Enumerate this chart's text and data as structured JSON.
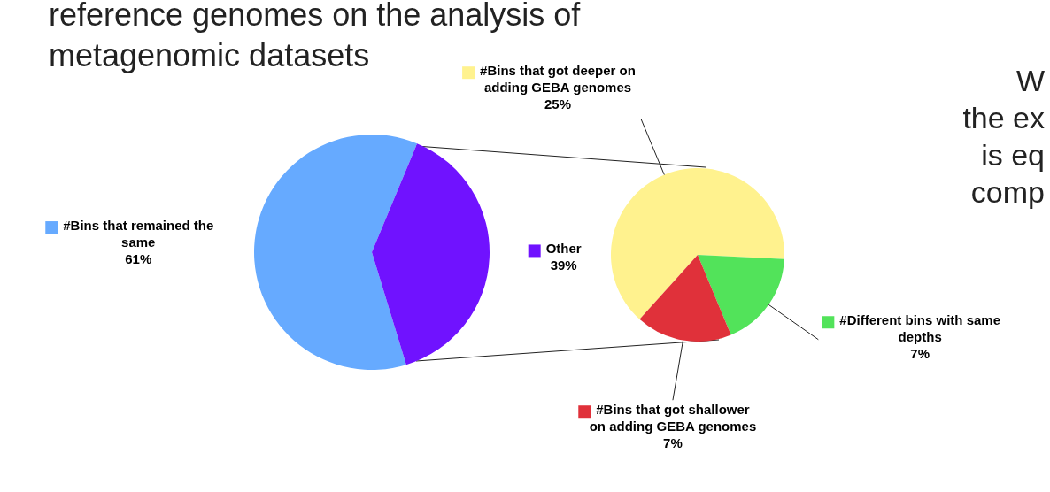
{
  "chart_data": [
    {
      "type": "pie",
      "title": "reference genomes  on the analysis of metagenomic datasets",
      "annotations": [
        "W",
        "the ex",
        "is eq",
        "comp"
      ],
      "categories": [
        "#Bins that remained the same",
        "Other"
      ],
      "values": [
        61,
        39
      ],
      "colors": [
        "#66aaff",
        "#7012ff"
      ],
      "legend": "left",
      "value_labels": [
        "61%",
        "39%"
      ]
    },
    {
      "type": "pie",
      "categories": [
        "#Bins that got deeper on adding GEBA genomes",
        "#Different bins with same depths",
        "#Bins that got shallower on adding GEBA genomes"
      ],
      "values": [
        25,
        7,
        7
      ],
      "colors": [
        "#fff28e",
        "#52e35a",
        "#e0313a"
      ],
      "legend": "right",
      "value_labels": [
        "25%",
        "7%",
        "7%"
      ]
    }
  ]
}
